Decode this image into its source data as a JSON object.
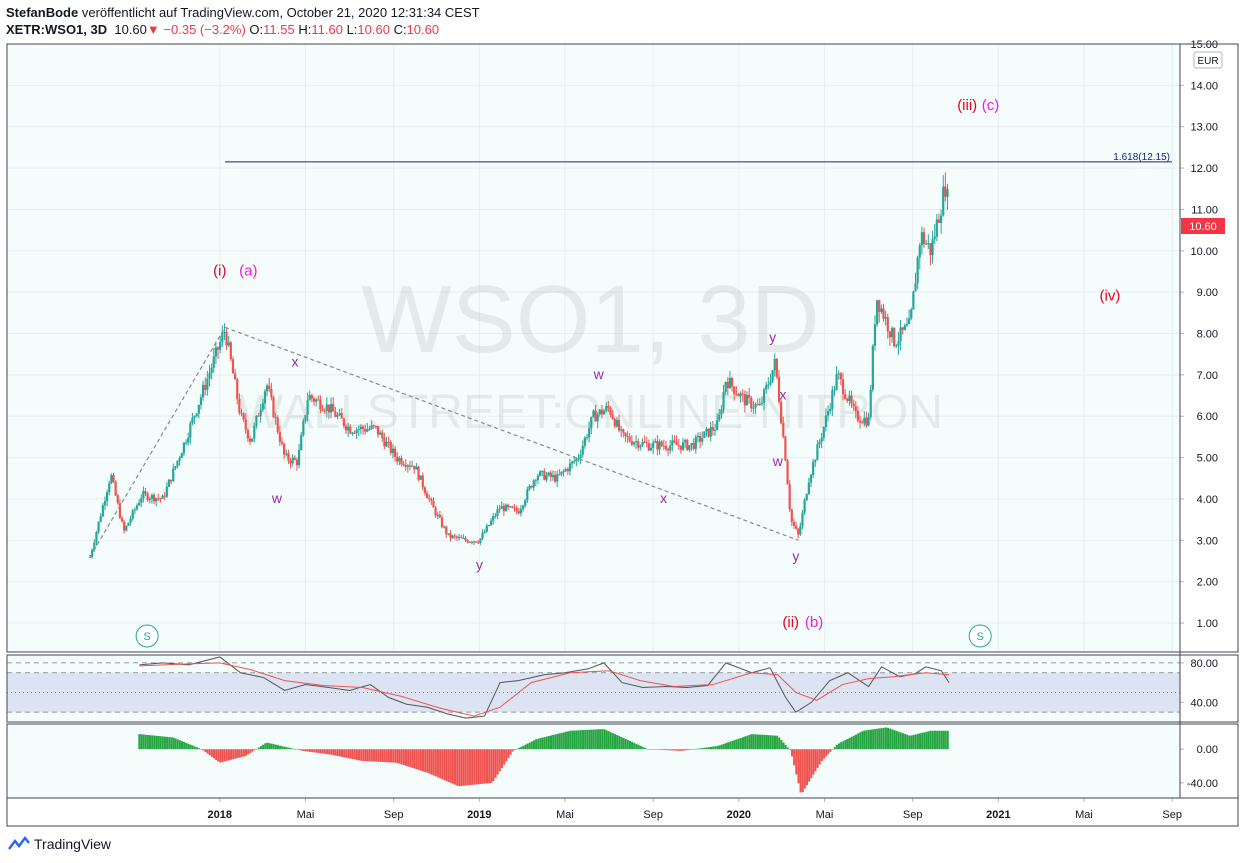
{
  "header": {
    "author": "StefanBode",
    "published": "veröffentlicht auf TradingView.com, October 21, 2020 12:31:34 CEST",
    "symbol": "XETR:WSO1, 3D",
    "last": "10.60",
    "change": "−0.35 (−3.2%)",
    "o_label": "O:",
    "o_value": "11.55",
    "h_label": "H:",
    "h_value": "11.60",
    "l_label": "L:",
    "l_value": "10.60",
    "c_label": "C:",
    "c_value": "10.60"
  },
  "watermark": {
    "title": "WSO1, 3D",
    "subtitle": "WALLSTREET:ONLINE-NITRON"
  },
  "currency": "EUR",
  "footer": {
    "brand": "TradingView"
  },
  "colors": {
    "up": "#26a69a",
    "down": "#ef5350",
    "grid": "#e9eef2",
    "bg": "#f4fcfc",
    "wave_red": "#e8001c",
    "wave_magenta": "#e91ee0",
    "wave_purple": "#9c27b0",
    "rsi_line": "#555555",
    "rsi_ma": "#ef5350",
    "rsi_band": "#d6dcef",
    "fib_line": "#1a237e",
    "price_label": "#f23645"
  },
  "chart_data": [
    {
      "type": "candlestick",
      "title": "XETR:WSO1, 3D",
      "ylim": [
        0.3,
        15.0
      ],
      "yticks": [
        "15.00",
        "14.00",
        "13.00",
        "12.00",
        "11.00",
        "10.00",
        "9.00",
        "8.00",
        "7.00",
        "6.00",
        "5.00",
        "4.00",
        "3.00",
        "2.00",
        "1.00"
      ],
      "xticks": [
        "2018",
        "Mai",
        "Sep",
        "2019",
        "Mai",
        "Sep",
        "2020",
        "Mai",
        "Sep",
        "2021",
        "Mai",
        "Sep"
      ],
      "xticks_num": [
        2018.0,
        2018.33,
        2018.67,
        2019.0,
        2019.33,
        2019.67,
        2020.0,
        2020.33,
        2020.67,
        2021.0,
        2021.33,
        2021.67
      ],
      "x_range": [
        2017.18,
        2021.7
      ],
      "last_price": "10.60",
      "price_path": [
        [
          2017.5,
          2.6
        ],
        [
          2017.58,
          4.6
        ],
        [
          2017.63,
          3.2
        ],
        [
          2017.7,
          4.1
        ],
        [
          2017.78,
          4.0
        ],
        [
          2017.86,
          5.3
        ],
        [
          2018.02,
          8.1
        ],
        [
          2018.08,
          6.0
        ],
        [
          2018.12,
          5.4
        ],
        [
          2018.18,
          6.8
        ],
        [
          2018.25,
          5.0
        ],
        [
          2018.3,
          4.9
        ],
        [
          2018.34,
          6.5
        ],
        [
          2018.42,
          6.2
        ],
        [
          2018.5,
          5.7
        ],
        [
          2018.6,
          5.7
        ],
        [
          2018.68,
          5.0
        ],
        [
          2018.75,
          4.8
        ],
        [
          2018.82,
          3.8
        ],
        [
          2018.88,
          3.1
        ],
        [
          2018.95,
          3.0
        ],
        [
          2019.0,
          3.0
        ],
        [
          2019.08,
          3.8
        ],
        [
          2019.15,
          3.7
        ],
        [
          2019.22,
          4.6
        ],
        [
          2019.3,
          4.5
        ],
        [
          2019.38,
          5.0
        ],
        [
          2019.44,
          6.0
        ],
        [
          2019.5,
          6.2
        ],
        [
          2019.55,
          5.5
        ],
        [
          2019.65,
          5.3
        ],
        [
          2019.72,
          5.3
        ],
        [
          2019.82,
          5.3
        ],
        [
          2019.92,
          5.8
        ],
        [
          2019.95,
          6.9
        ],
        [
          2020.02,
          6.4
        ],
        [
          2020.08,
          6.2
        ],
        [
          2020.14,
          7.3
        ],
        [
          2020.18,
          5.0
        ],
        [
          2020.2,
          3.5
        ],
        [
          2020.23,
          3.1
        ],
        [
          2020.27,
          4.5
        ],
        [
          2020.33,
          5.8
        ],
        [
          2020.38,
          7.0
        ],
        [
          2020.45,
          6.0
        ],
        [
          2020.5,
          5.9
        ],
        [
          2020.53,
          8.9
        ],
        [
          2020.6,
          7.8
        ],
        [
          2020.66,
          8.2
        ],
        [
          2020.7,
          10.4
        ],
        [
          2020.74,
          10.0
        ],
        [
          2020.8,
          11.7
        ],
        [
          2020.81,
          10.6
        ]
      ],
      "fib_line": {
        "label": "1.618(12.15)",
        "value": 12.15
      },
      "wave_labels": [
        {
          "text": "(i)",
          "x": 2018.0,
          "y": 9.4,
          "color": "wave_red"
        },
        {
          "text": "(a)",
          "x": 2018.11,
          "y": 9.4,
          "color": "wave_magenta"
        },
        {
          "text": "x",
          "x": 2018.29,
          "y": 7.2,
          "color": "wave_purple"
        },
        {
          "text": "w",
          "x": 2018.22,
          "y": 3.9,
          "color": "wave_purple"
        },
        {
          "text": "w",
          "x": 2019.46,
          "y": 6.9,
          "color": "wave_purple"
        },
        {
          "text": "y",
          "x": 2019.0,
          "y": 2.3,
          "color": "wave_purple"
        },
        {
          "text": "x",
          "x": 2019.71,
          "y": 3.9,
          "color": "wave_purple"
        },
        {
          "text": "y",
          "x": 2020.13,
          "y": 7.8,
          "color": "wave_purple"
        },
        {
          "text": "x",
          "x": 2020.17,
          "y": 6.4,
          "color": "wave_purple"
        },
        {
          "text": "w",
          "x": 2020.15,
          "y": 4.8,
          "color": "wave_purple"
        },
        {
          "text": "y",
          "x": 2020.22,
          "y": 2.5,
          "color": "wave_purple"
        },
        {
          "text": "(ii)",
          "x": 2020.2,
          "y": 0.9,
          "color": "wave_red"
        },
        {
          "text": "(b)",
          "x": 2020.29,
          "y": 0.9,
          "color": "wave_magenta"
        },
        {
          "text": "(iii)",
          "x": 2020.88,
          "y": 13.4,
          "color": "wave_red"
        },
        {
          "text": "(c)",
          "x": 2020.97,
          "y": 13.4,
          "color": "wave_magenta"
        },
        {
          "text": "(iv)",
          "x": 2021.43,
          "y": 8.8,
          "color": "wave_red"
        }
      ],
      "trendline": [
        [
          2018.02,
          8.15
        ],
        [
          2020.23,
          3.0
        ]
      ],
      "impulse_line": [
        [
          2017.5,
          2.6
        ],
        [
          2018.02,
          8.15
        ]
      ]
    },
    {
      "type": "line",
      "title": "RSI",
      "ylim": [
        20,
        88
      ],
      "yticks": [
        "80.00",
        "40.00"
      ],
      "bands": [
        30,
        70
      ],
      "rsi": [
        [
          2017.69,
          78
        ],
        [
          2017.78,
          80
        ],
        [
          2017.88,
          78
        ],
        [
          2018.0,
          86
        ],
        [
          2018.08,
          70
        ],
        [
          2018.17,
          65
        ],
        [
          2018.25,
          52
        ],
        [
          2018.33,
          58
        ],
        [
          2018.42,
          55
        ],
        [
          2018.5,
          52
        ],
        [
          2018.58,
          58
        ],
        [
          2018.65,
          45
        ],
        [
          2018.72,
          38
        ],
        [
          2018.8,
          35
        ],
        [
          2018.88,
          28
        ],
        [
          2018.95,
          24
        ],
        [
          2019.02,
          26
        ],
        [
          2019.08,
          60
        ],
        [
          2019.15,
          62
        ],
        [
          2019.25,
          68
        ],
        [
          2019.33,
          70
        ],
        [
          2019.42,
          74
        ],
        [
          2019.48,
          80
        ],
        [
          2019.55,
          60
        ],
        [
          2019.63,
          55
        ],
        [
          2019.72,
          56
        ],
        [
          2019.8,
          55
        ],
        [
          2019.88,
          57
        ],
        [
          2019.95,
          80
        ],
        [
          2020.05,
          70
        ],
        [
          2020.12,
          75
        ],
        [
          2020.18,
          45
        ],
        [
          2020.22,
          30
        ],
        [
          2020.28,
          40
        ],
        [
          2020.35,
          62
        ],
        [
          2020.42,
          70
        ],
        [
          2020.5,
          56
        ],
        [
          2020.55,
          76
        ],
        [
          2020.62,
          66
        ],
        [
          2020.68,
          69
        ],
        [
          2020.72,
          76
        ],
        [
          2020.78,
          72
        ],
        [
          2020.81,
          60
        ]
      ],
      "rsi_ma": [
        [
          2017.69,
          77
        ],
        [
          2017.88,
          79
        ],
        [
          2018.0,
          80
        ],
        [
          2018.12,
          73
        ],
        [
          2018.25,
          62
        ],
        [
          2018.4,
          57
        ],
        [
          2018.55,
          55
        ],
        [
          2018.7,
          46
        ],
        [
          2018.85,
          34
        ],
        [
          2018.98,
          26
        ],
        [
          2019.08,
          35
        ],
        [
          2019.2,
          60
        ],
        [
          2019.35,
          70
        ],
        [
          2019.5,
          72
        ],
        [
          2019.62,
          62
        ],
        [
          2019.75,
          56
        ],
        [
          2019.9,
          58
        ],
        [
          2020.05,
          70
        ],
        [
          2020.15,
          68
        ],
        [
          2020.22,
          50
        ],
        [
          2020.3,
          42
        ],
        [
          2020.4,
          58
        ],
        [
          2020.5,
          64
        ],
        [
          2020.6,
          66
        ],
        [
          2020.72,
          70
        ],
        [
          2020.81,
          68
        ]
      ]
    },
    {
      "type": "bar",
      "title": "Histogram",
      "ylim": [
        -58,
        30
      ],
      "yticks": [
        "0.00",
        "-40.00"
      ],
      "hist": [
        [
          2017.69,
          18
        ],
        [
          2017.82,
          14
        ],
        [
          2017.93,
          0
        ],
        [
          2018.0,
          -16
        ],
        [
          2018.1,
          -8
        ],
        [
          2018.18,
          8
        ],
        [
          2018.32,
          -2
        ],
        [
          2018.42,
          -6
        ],
        [
          2018.55,
          -14
        ],
        [
          2018.68,
          -16
        ],
        [
          2018.8,
          -28
        ],
        [
          2018.92,
          -44
        ],
        [
          2019.05,
          -40
        ],
        [
          2019.13,
          -2
        ],
        [
          2019.22,
          12
        ],
        [
          2019.35,
          22
        ],
        [
          2019.48,
          24
        ],
        [
          2019.58,
          10
        ],
        [
          2019.65,
          0
        ],
        [
          2019.78,
          -2
        ],
        [
          2019.92,
          4
        ],
        [
          2020.05,
          18
        ],
        [
          2020.15,
          16
        ],
        [
          2020.2,
          -2
        ],
        [
          2020.24,
          -54
        ],
        [
          2020.32,
          -14
        ],
        [
          2020.38,
          6
        ],
        [
          2020.48,
          22
        ],
        [
          2020.57,
          26
        ],
        [
          2020.66,
          16
        ],
        [
          2020.74,
          22
        ],
        [
          2020.81,
          22
        ]
      ]
    }
  ]
}
